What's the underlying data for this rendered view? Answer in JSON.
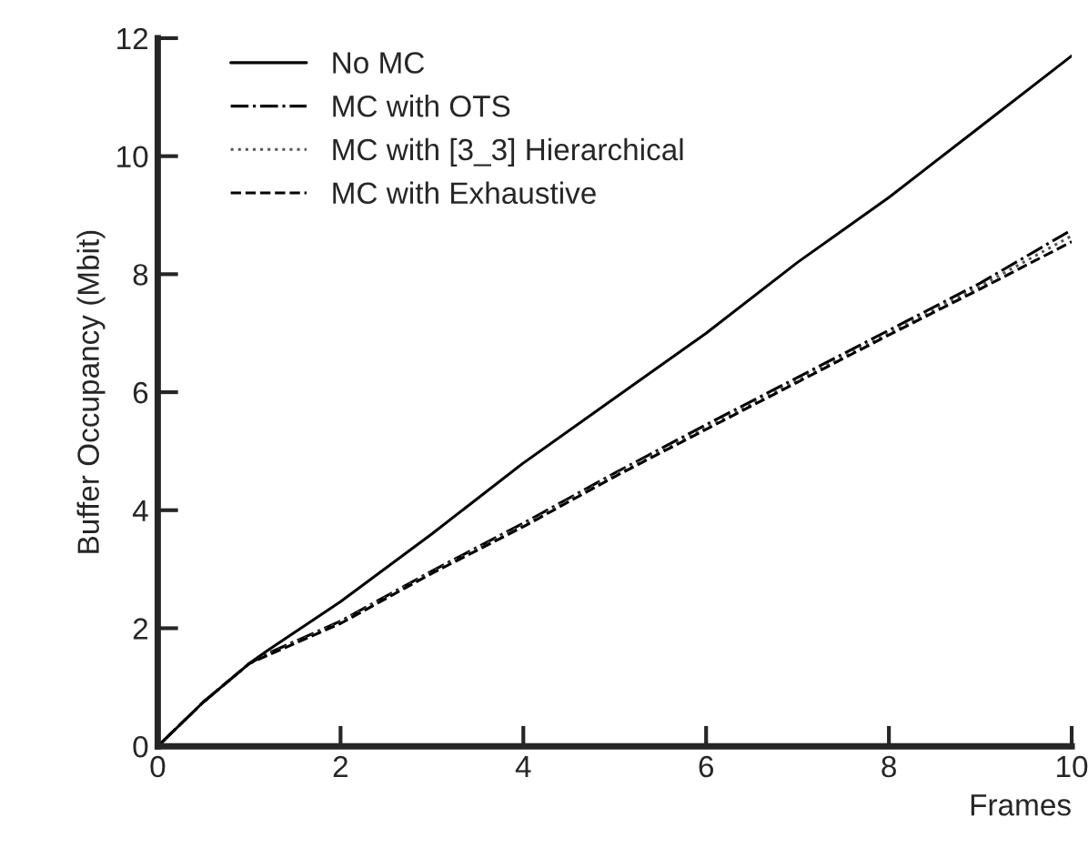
{
  "chart_data": {
    "type": "line",
    "xlabel": "Frames",
    "ylabel": "Buffer Occupancy (Mbit)",
    "x": [
      0,
      0.5,
      1,
      1.2,
      2,
      3,
      4,
      5,
      6,
      7,
      8,
      9,
      10
    ],
    "xlim": [
      0,
      10
    ],
    "xticks": [
      0,
      2,
      4,
      6,
      8,
      10
    ],
    "ylim": [
      0,
      12
    ],
    "yticks": [
      0,
      2,
      4,
      6,
      8,
      10,
      12
    ],
    "grid": false,
    "legend": "top left",
    "series": [
      {
        "name": "No MC",
        "color": "#000000",
        "line_style": "solid",
        "values": [
          0,
          0.75,
          1.4,
          1.62,
          2.45,
          3.6,
          4.8,
          5.9,
          7.0,
          8.2,
          9.3,
          10.5,
          11.7
        ]
      },
      {
        "name": "MC with OTS",
        "color": "#000000",
        "line_style": "dashdot",
        "values": [
          0,
          0.75,
          1.4,
          1.57,
          2.12,
          2.97,
          3.78,
          4.63,
          5.45,
          6.25,
          7.05,
          7.85,
          8.75
        ]
      },
      {
        "name": "MC with [3_3] Hierarchical",
        "color": "#555555",
        "line_style": "dotted",
        "values": [
          0,
          0.75,
          1.4,
          1.55,
          2.1,
          2.95,
          3.75,
          4.6,
          5.4,
          6.2,
          7.0,
          7.8,
          8.65
        ]
      },
      {
        "name": "MC with Exhaustive",
        "color": "#000000",
        "line_style": "dashed",
        "values": [
          0,
          0.75,
          1.4,
          1.54,
          2.08,
          2.93,
          3.72,
          4.57,
          5.37,
          6.17,
          6.97,
          7.75,
          8.55
        ]
      }
    ]
  }
}
